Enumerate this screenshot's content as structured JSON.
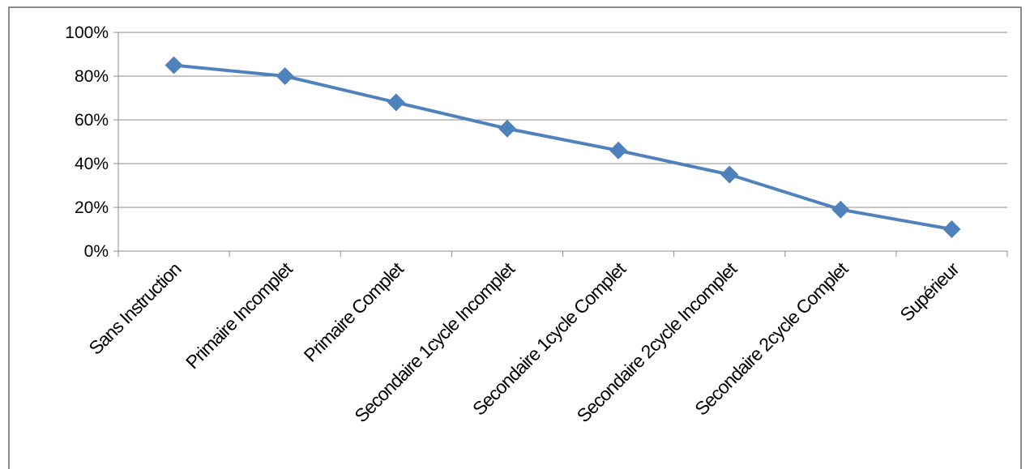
{
  "chart_data": {
    "type": "line",
    "title": "",
    "xlabel": "",
    "ylabel": "",
    "categories": [
      "Sans Instruction",
      "Primaire Incomplet",
      "Primaire Complet",
      "Secondaire 1cycle Incomplet",
      "Secondaire 1cycle Complet",
      "Secondaire 2cycle Incomplet",
      "Secondaire 2cycle Complet",
      "Supérieur"
    ],
    "series": [
      {
        "values": [
          85,
          80,
          68,
          56,
          46,
          35,
          19,
          10
        ],
        "color": "#4f81bd",
        "marker": "diamond"
      }
    ],
    "ylim": [
      0,
      100
    ],
    "yticks": [
      0,
      20,
      40,
      60,
      80,
      100
    ],
    "ytick_labels": [
      "0%",
      "20%",
      "40%",
      "60%",
      "80%",
      "100%"
    ],
    "grid": "horizontal",
    "legend": "none"
  }
}
